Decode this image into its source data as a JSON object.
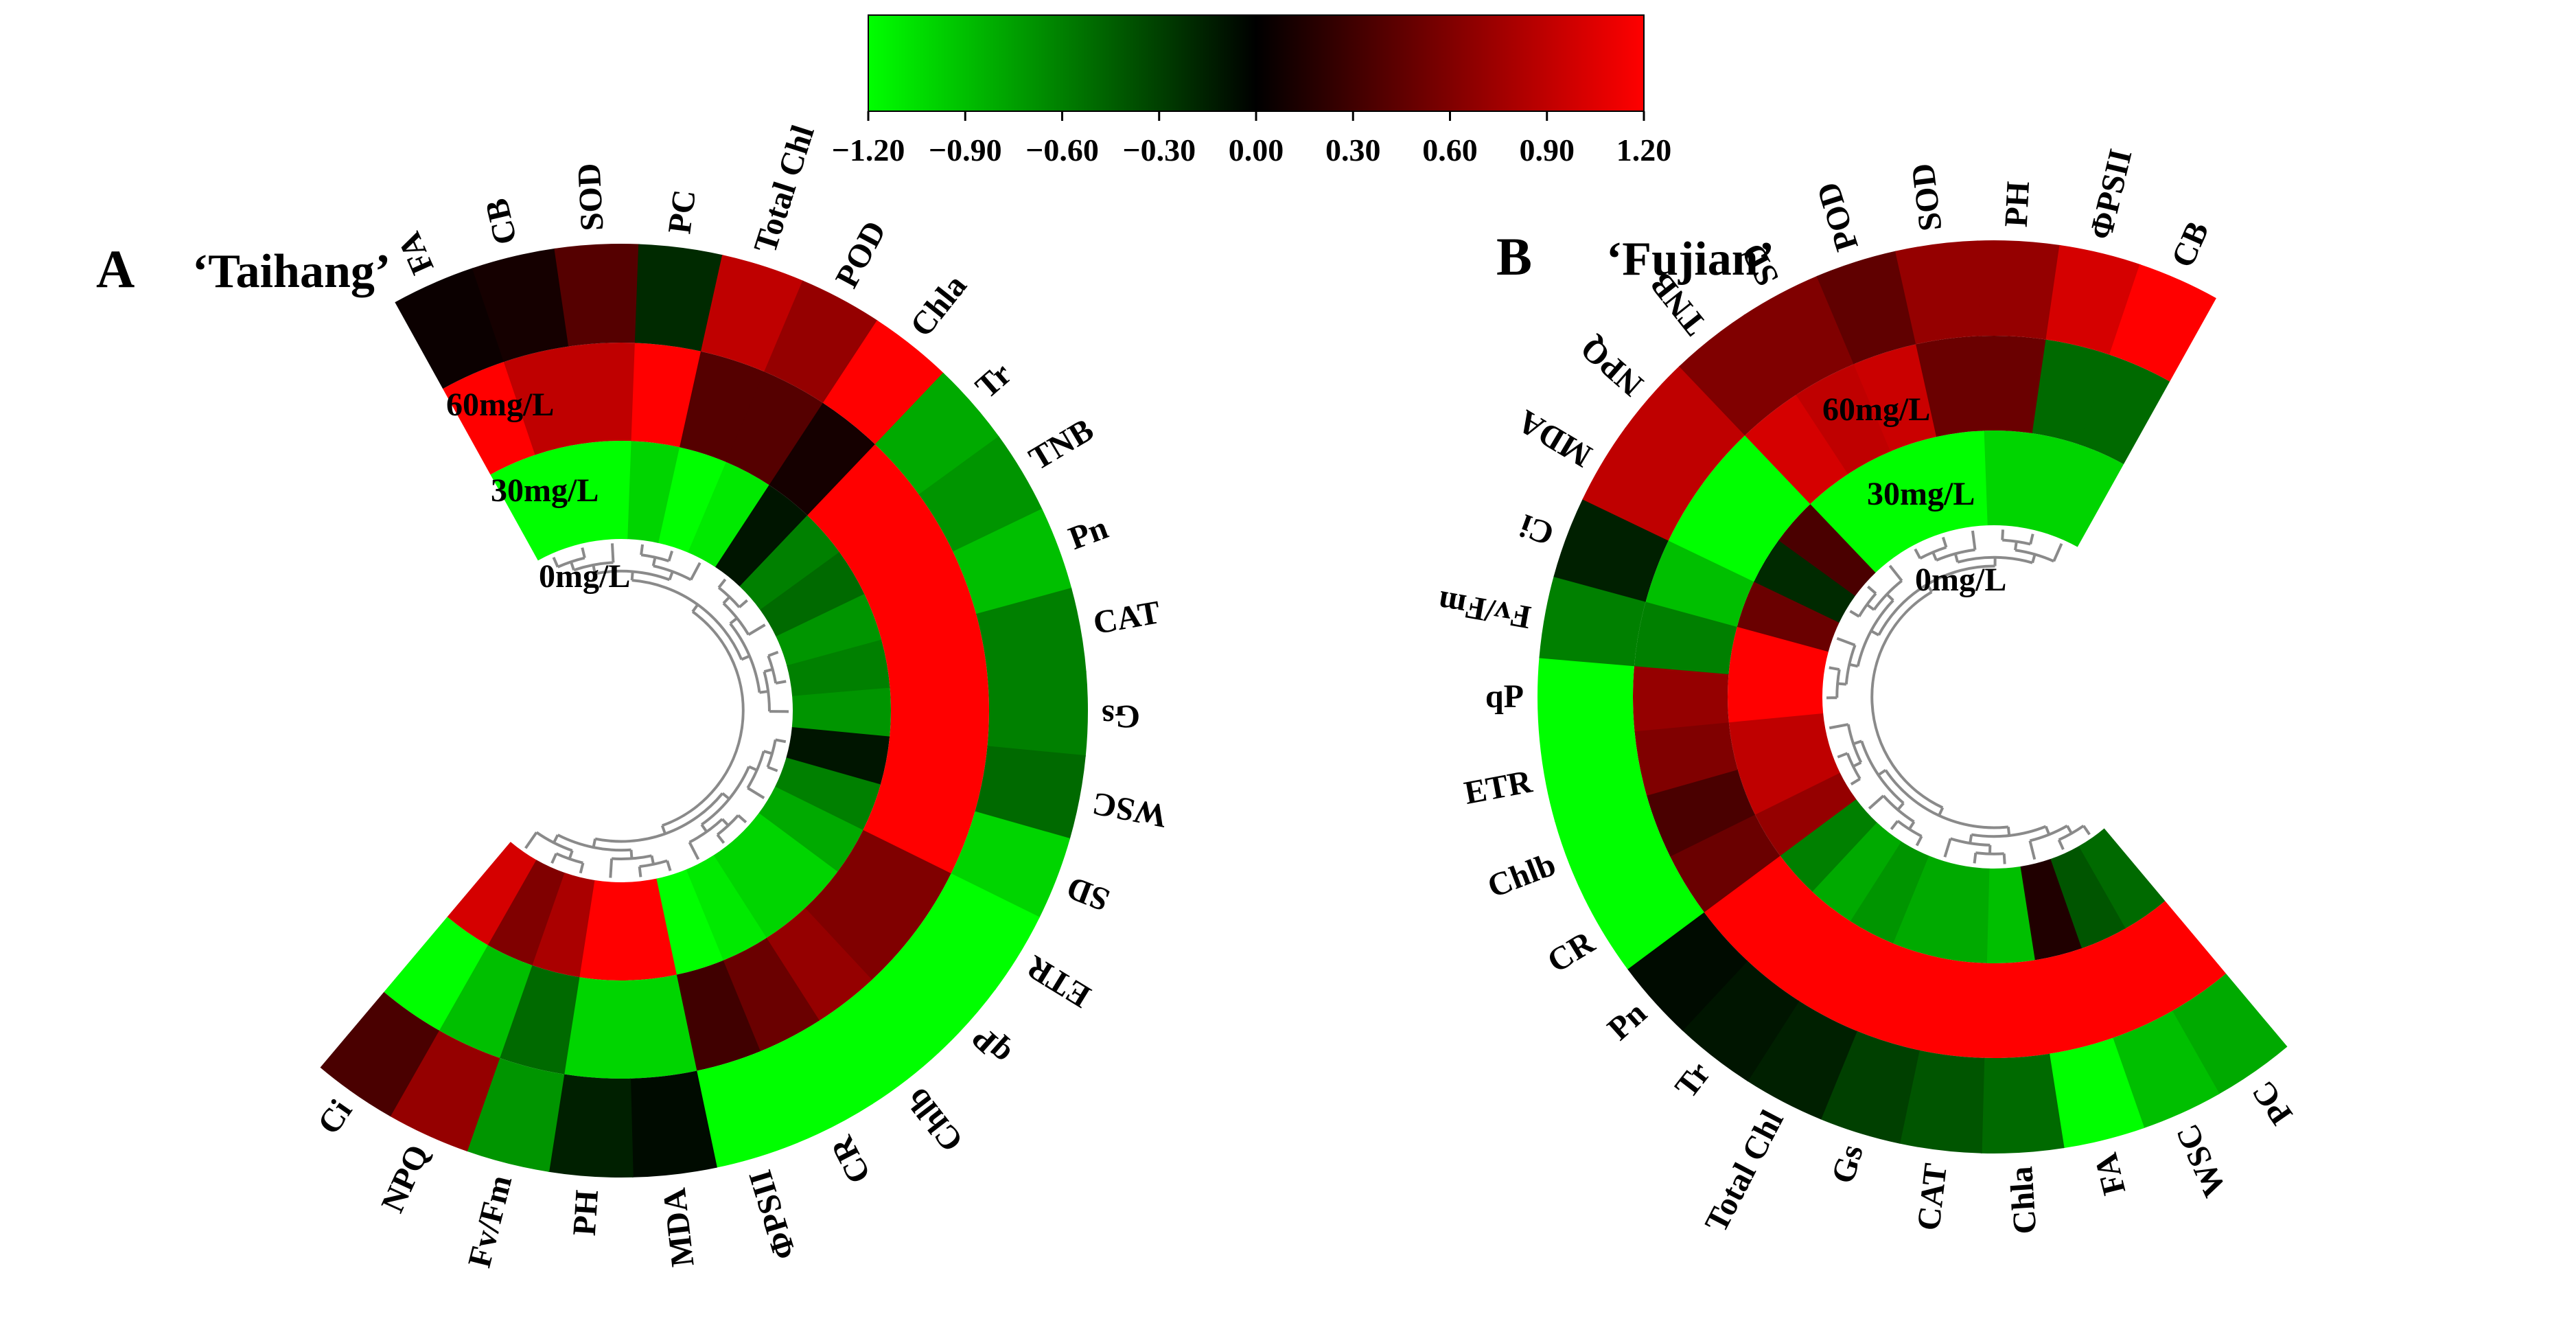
{
  "colorbar": {
    "ticks": [
      "−1.20",
      "−0.90",
      "−0.60",
      "−0.30",
      "0.00",
      "0.30",
      "0.60",
      "0.90",
      "1.20"
    ],
    "range": [
      -1.2,
      1.2
    ],
    "stops": [
      "#00ff00",
      "#000000",
      "#ff0000"
    ]
  },
  "chart_data": [
    {
      "type": "heatmap",
      "panel_letter": "A",
      "title": "‘Taihang’",
      "rings": [
        "0mg/L",
        "30mg/L",
        "60mg/L"
      ],
      "variables": [
        "FA",
        "CB",
        "SOD",
        "PC",
        "Total Chl",
        "POD",
        "Chla",
        "Tr",
        "TNB",
        "Pn",
        "CAT",
        "Gs",
        "WSC",
        "SD",
        "ETR",
        "qP",
        "Chlb",
        "CR",
        "ΦPSII",
        "MDA",
        "PH",
        "Fv/Fm",
        "NPQ",
        "Ci"
      ],
      "values": [
        [
          -1.2,
          -1.2,
          -1.2,
          -1.0,
          -1.2,
          -1.1,
          -0.1,
          -0.6,
          -0.5,
          -0.7,
          -0.6,
          -0.7,
          -0.1,
          -0.6,
          -0.8,
          -1.0,
          -1.0,
          -1.1,
          -1.2,
          1.2,
          1.2,
          0.8,
          0.6,
          1.0
        ],
        [
          1.2,
          0.9,
          0.9,
          1.2,
          0.4,
          0.4,
          0.1,
          1.2,
          1.2,
          1.2,
          1.2,
          1.2,
          1.2,
          1.2,
          0.6,
          0.6,
          0.7,
          0.5,
          0.3,
          -1.0,
          -1.0,
          -0.5,
          -0.9,
          -1.2
        ],
        [
          0.05,
          0.1,
          0.4,
          -0.2,
          0.9,
          0.7,
          1.2,
          -0.8,
          -0.7,
          -0.9,
          -0.6,
          -0.6,
          -0.5,
          -1.0,
          -1.2,
          -1.2,
          -1.2,
          -1.2,
          -1.2,
          -0.05,
          -0.15,
          -0.7,
          0.7,
          0.35
        ]
      ]
    },
    {
      "type": "heatmap",
      "panel_letter": "B",
      "title": "‘Fujian’",
      "rings": [
        "0mg/L",
        "30mg/L",
        "60mg/L"
      ],
      "variables": [
        "PC",
        "WSC",
        "FA",
        "Chla",
        "CAT",
        "Gs",
        "Total Chl",
        "Tr",
        "Pn",
        "CR",
        "Chlb",
        "ETR",
        "qP",
        "Fv/Fm",
        "Ci",
        "MDA",
        "NPQ",
        "TNB",
        "SD",
        "POD",
        "SOD",
        "PH",
        "ΦPSII",
        "CB"
      ],
      "values": [
        [
          -0.5,
          -0.4,
          0.15,
          -0.9,
          -0.8,
          -0.8,
          -0.7,
          -0.8,
          -0.6,
          0.7,
          0.9,
          0.9,
          1.2,
          1.2,
          0.5,
          -0.2,
          0.35,
          -1.2,
          -1.2,
          -1.2,
          -1.2,
          -1.0,
          -1.0,
          -1.0
        ],
        [
          1.2,
          1.2,
          1.2,
          1.2,
          1.2,
          1.2,
          1.2,
          1.2,
          1.2,
          0.5,
          0.35,
          0.6,
          0.7,
          -0.6,
          -0.9,
          -1.2,
          -1.2,
          1.0,
          0.9,
          0.95,
          0.5,
          0.5,
          -0.5,
          -0.5
        ],
        [
          -0.8,
          -0.9,
          -1.2,
          -0.5,
          -0.4,
          -0.3,
          -0.15,
          -0.1,
          -0.05,
          -1.2,
          -1.2,
          -1.2,
          -1.2,
          -0.6,
          -0.15,
          0.9,
          0.9,
          0.6,
          0.6,
          0.45,
          0.7,
          0.7,
          1.0,
          1.2
        ]
      ]
    }
  ]
}
